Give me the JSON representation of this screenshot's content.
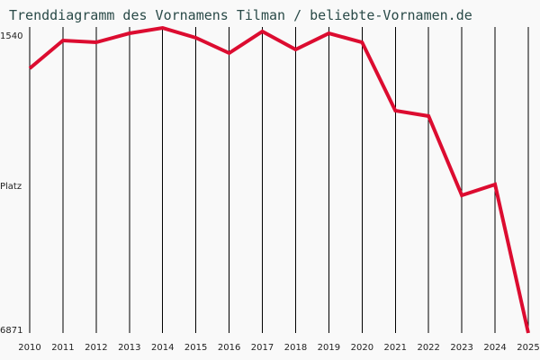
{
  "title": "Trenddiagramm des Vornamens Tilman / beliebte-Vornamen.de",
  "y_axis": {
    "top_label": "1540",
    "middle_label": "Platz",
    "bottom_label": "6871"
  },
  "colors": {
    "background": "#f9f9f9",
    "line": "#dc0c30",
    "grid": "#000000",
    "title": "#2a4a48"
  },
  "chart_data": {
    "type": "line",
    "title": "Trenddiagramm des Vornamens Tilman / beliebte-Vornamen.de",
    "xlabel": "",
    "ylabel": "Platz",
    "y_inverted": true,
    "ylim": [
      1540,
      6871
    ],
    "grid": "vertical",
    "categories": [
      "2010",
      "2011",
      "2012",
      "2013",
      "2014",
      "2015",
      "2016",
      "2017",
      "2018",
      "2019",
      "2020",
      "2021",
      "2022",
      "2023",
      "2024",
      "2025"
    ],
    "series": [
      {
        "name": "Tilman",
        "values": [
          2261,
          1775,
          1807,
          1650,
          1556,
          1728,
          1995,
          1618,
          1932,
          1650,
          1807,
          2998,
          3092,
          4472,
          4283,
          6871
        ]
      }
    ]
  }
}
